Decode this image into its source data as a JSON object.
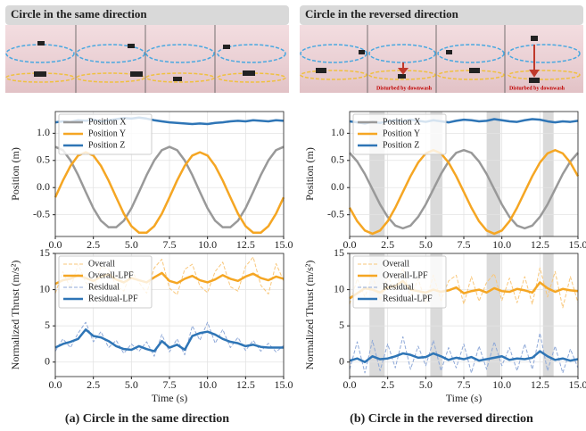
{
  "panels": [
    {
      "banner": "Circle in the same direction",
      "caption": "(a) Circle in the same direction"
    },
    {
      "banner": "Circle in the reversed direction",
      "caption": "(b) Circle in the reversed direction",
      "annotations": [
        "Disturbed by downwash",
        "Disturbed by downwash"
      ]
    }
  ],
  "chart_data": [
    {
      "type": "line",
      "ylabel": "Position (m)",
      "legend": "upper left",
      "grid": true,
      "x": [
        0,
        0.5,
        1,
        1.5,
        2,
        2.5,
        3,
        3.5,
        4,
        4.5,
        5,
        5.5,
        6,
        6.5,
        7,
        7.5,
        8,
        8.5,
        9,
        9.5,
        10,
        10.5,
        11,
        11.5,
        12,
        12.5,
        13,
        13.5,
        14,
        14.5,
        15
      ],
      "xlim": [
        0,
        15
      ],
      "ylim": [
        -0.9,
        1.4
      ],
      "xticks": [
        {
          "value": 0,
          "label": "0.0"
        },
        2.5,
        {
          "value": 5,
          "label": "5.0"
        },
        7.5,
        {
          "value": 10,
          "label": "10.0"
        },
        12.5,
        {
          "value": 15,
          "label": "15.0"
        }
      ],
      "yticks": [
        -0.5,
        {
          "value": 0,
          "label": "0.0"
        },
        0.5,
        {
          "value": 1,
          "label": "1.0"
        }
      ],
      "series": [
        {
          "name": "Position X",
          "color": "#999999",
          "values": [
            0.75,
            0.69,
            0.5,
            0.23,
            -0.08,
            -0.38,
            -0.61,
            -0.73,
            -0.73,
            -0.61,
            -0.38,
            -0.08,
            0.23,
            0.5,
            0.69,
            0.75,
            0.69,
            0.5,
            0.23,
            -0.08,
            -0.38,
            -0.61,
            -0.73,
            -0.73,
            -0.61,
            -0.38,
            -0.08,
            0.23,
            0.5,
            0.69,
            0.75
          ]
        },
        {
          "name": "Position Y",
          "color": "#f5a623",
          "values": [
            -0.18,
            0.13,
            0.4,
            0.59,
            0.65,
            0.59,
            0.4,
            0.13,
            -0.18,
            -0.48,
            -0.71,
            -0.83,
            -0.83,
            -0.71,
            -0.48,
            -0.18,
            0.13,
            0.4,
            0.59,
            0.65,
            0.59,
            0.4,
            0.13,
            -0.18,
            -0.48,
            -0.71,
            -0.83,
            -0.83,
            -0.71,
            -0.48,
            -0.18
          ]
        },
        {
          "name": "Position Z",
          "color": "#2e75b6",
          "values": [
            1.2,
            1.22,
            1.21,
            1.24,
            1.23,
            1.25,
            1.22,
            1.24,
            1.26,
            1.28,
            1.27,
            1.29,
            1.27,
            1.24,
            1.22,
            1.2,
            1.19,
            1.18,
            1.17,
            1.18,
            1.17,
            1.19,
            1.2,
            1.22,
            1.23,
            1.22,
            1.24,
            1.23,
            1.22,
            1.24,
            1.23
          ]
        }
      ]
    },
    {
      "type": "line",
      "xlabel": "Time (s)",
      "ylabel": "Normalized Thrust (m/s²)",
      "legend": "upper left",
      "grid": true,
      "x": [
        0,
        0.5,
        1,
        1.5,
        2,
        2.5,
        3,
        3.5,
        4,
        4.5,
        5,
        5.5,
        6,
        6.5,
        7,
        7.5,
        8,
        8.5,
        9,
        9.5,
        10,
        10.5,
        11,
        11.5,
        12,
        12.5,
        13,
        13.5,
        14,
        14.5,
        15
      ],
      "xlim": [
        0,
        15
      ],
      "ylim": [
        -2,
        15
      ],
      "xticks": [
        {
          "value": 0,
          "label": "0.0"
        },
        2.5,
        {
          "value": 5,
          "label": "5.0"
        },
        7.5,
        {
          "value": 10,
          "label": "10.0"
        },
        12.5,
        {
          "value": 15,
          "label": "15.0"
        }
      ],
      "yticks": [
        0,
        5,
        10,
        15
      ],
      "series": [
        {
          "name": "Overall",
          "color": "#f9c77a",
          "dashed": true,
          "values": [
            9.5,
            12.5,
            10.2,
            13.5,
            11.0,
            10.0,
            13.2,
            12.8,
            10.5,
            9.8,
            12.6,
            11.0,
            9.5,
            13.0,
            14.2,
            10.2,
            9.3,
            12.8,
            13.5,
            10.5,
            9.6,
            12.5,
            13.8,
            10.4,
            9.8,
            13.2,
            14.5,
            10.6,
            9.4,
            13.6,
            11.2
          ]
        },
        {
          "name": "Overall-LPF",
          "color": "#f5a623",
          "values": [
            10.8,
            11.3,
            11.5,
            12.0,
            11.6,
            11.2,
            11.8,
            12.1,
            11.4,
            11.0,
            11.6,
            11.3,
            11.0,
            11.7,
            12.3,
            11.2,
            10.9,
            11.5,
            11.9,
            11.3,
            11.0,
            11.4,
            12.0,
            11.5,
            11.2,
            11.8,
            12.2,
            11.6,
            11.3,
            11.8,
            11.5
          ]
        },
        {
          "name": "Residual",
          "color": "#8fa9d8",
          "dashed": true,
          "values": [
            1.5,
            3.2,
            2.0,
            4.0,
            5.5,
            2.8,
            4.2,
            2.0,
            3.0,
            1.2,
            2.5,
            1.5,
            2.8,
            0.8,
            3.8,
            1.4,
            3.2,
            1.0,
            5.0,
            3.0,
            5.5,
            2.6,
            4.5,
            2.0,
            3.4,
            1.6,
            3.0,
            1.5,
            2.6,
            1.4,
            2.3
          ]
        },
        {
          "name": "Residual-LPF",
          "color": "#2e75b6",
          "values": [
            2.0,
            2.5,
            2.8,
            3.2,
            4.5,
            3.6,
            3.4,
            2.9,
            2.2,
            1.8,
            1.7,
            2.2,
            1.8,
            1.5,
            2.9,
            2.0,
            2.4,
            1.7,
            3.6,
            4.0,
            4.2,
            3.8,
            3.2,
            2.8,
            2.6,
            2.2,
            2.4,
            2.1,
            2.0,
            2.0,
            2.0
          ]
        }
      ]
    },
    {
      "type": "line",
      "ylabel": "Position (m)",
      "legend": "upper left",
      "grid": true,
      "x": [
        0,
        0.5,
        1,
        1.5,
        2,
        2.5,
        3,
        3.5,
        4,
        4.5,
        5,
        5.5,
        6,
        6.5,
        7,
        7.5,
        8,
        8.5,
        9,
        9.5,
        10,
        10.5,
        11,
        11.5,
        12,
        12.5,
        13,
        13.5,
        14,
        14.5,
        15
      ],
      "xlim": [
        0,
        15
      ],
      "ylim": [
        -0.9,
        1.4
      ],
      "shaded_spans": [
        [
          1.3,
          2.3
        ],
        [
          5.3,
          6.1
        ],
        [
          9.0,
          9.9
        ],
        [
          12.7,
          13.4
        ]
      ],
      "xticks": [
        {
          "value": 0,
          "label": "0.0"
        },
        2.5,
        {
          "value": 5,
          "label": "5.0"
        },
        7.5,
        {
          "value": 10,
          "label": "10.0"
        },
        12.5,
        {
          "value": 15,
          "label": "15.0"
        }
      ],
      "yticks": [
        -0.5,
        {
          "value": 0,
          "label": "0.0"
        },
        0.5,
        {
          "value": 1,
          "label": "1.0"
        }
      ],
      "series": [
        {
          "name": "Position X",
          "color": "#999999",
          "values": [
            0.64,
            0.48,
            0.25,
            -0.03,
            -0.31,
            -0.54,
            -0.7,
            -0.75,
            -0.7,
            -0.54,
            -0.31,
            -0.03,
            0.25,
            0.48,
            0.64,
            0.69,
            0.64,
            0.48,
            0.25,
            -0.03,
            -0.31,
            -0.54,
            -0.7,
            -0.75,
            -0.7,
            -0.54,
            -0.31,
            -0.03,
            0.25,
            0.48,
            0.64
          ]
        },
        {
          "name": "Position Y",
          "color": "#f5a623",
          "values": [
            -0.37,
            -0.62,
            -0.79,
            -0.85,
            -0.79,
            -0.62,
            -0.37,
            -0.08,
            0.21,
            0.46,
            0.63,
            0.69,
            0.63,
            0.46,
            0.21,
            -0.08,
            -0.37,
            -0.62,
            -0.79,
            -0.85,
            -0.79,
            -0.62,
            -0.37,
            -0.08,
            0.21,
            0.46,
            0.63,
            0.69,
            0.63,
            0.46,
            0.21
          ]
        },
        {
          "name": "Position Z",
          "color": "#2e75b6",
          "values": [
            1.22,
            1.2,
            1.18,
            1.21,
            1.19,
            1.22,
            1.24,
            1.22,
            1.25,
            1.23,
            1.21,
            1.24,
            1.22,
            1.2,
            1.23,
            1.25,
            1.24,
            1.22,
            1.23,
            1.26,
            1.24,
            1.22,
            1.21,
            1.24,
            1.26,
            1.25,
            1.22,
            1.2,
            1.22,
            1.21,
            1.23
          ]
        }
      ]
    },
    {
      "type": "line",
      "xlabel": "Time (s)",
      "ylabel": "Normalized Thrust (m/s²)",
      "legend": "upper left",
      "grid": true,
      "x": [
        0,
        0.5,
        1,
        1.5,
        2,
        2.5,
        3,
        3.5,
        4,
        4.5,
        5,
        5.5,
        6,
        6.5,
        7,
        7.5,
        8,
        8.5,
        9,
        9.5,
        10,
        10.5,
        11,
        11.5,
        12,
        12.5,
        13,
        13.5,
        14,
        14.5,
        15
      ],
      "xlim": [
        0,
        15
      ],
      "ylim": [
        -2,
        15
      ],
      "shaded_spans": [
        [
          1.3,
          2.3
        ],
        [
          5.3,
          6.1
        ],
        [
          9.0,
          9.9
        ],
        [
          12.7,
          13.4
        ]
      ],
      "xticks": [
        {
          "value": 0,
          "label": "0.0"
        },
        2.5,
        {
          "value": 5,
          "label": "5.0"
        },
        7.5,
        {
          "value": 10,
          "label": "10.0"
        },
        12.5,
        {
          "value": 15,
          "label": "15.0"
        }
      ],
      "yticks": [
        0,
        5,
        10,
        15
      ],
      "series": [
        {
          "name": "Overall",
          "color": "#f9c77a",
          "dashed": true,
          "values": [
            8.0,
            11.5,
            9.0,
            12.0,
            8.5,
            11.8,
            10.0,
            13.0,
            8.8,
            11.5,
            8.2,
            12.0,
            8.5,
            11.2,
            12.0,
            8.0,
            11.8,
            8.4,
            11.0,
            12.2,
            8.5,
            11.6,
            8.2,
            11.8,
            8.0,
            13.0,
            9.0,
            12.5,
            7.5,
            11.8,
            8.2
          ]
        },
        {
          "name": "Overall-LPF",
          "color": "#f5a623",
          "values": [
            8.8,
            9.5,
            10.2,
            10.0,
            9.6,
            10.3,
            10.5,
            11.2,
            10.0,
            9.8,
            9.6,
            10.0,
            9.7,
            9.9,
            10.3,
            9.5,
            9.8,
            10.0,
            9.6,
            10.2,
            9.8,
            9.7,
            10.1,
            9.9,
            9.6,
            11.0,
            10.2,
            9.7,
            10.1,
            9.9,
            9.8
          ]
        },
        {
          "name": "Residual",
          "color": "#8fa9d8",
          "dashed": true,
          "values": [
            -1.0,
            2.8,
            -1.5,
            3.0,
            -1.2,
            2.5,
            -0.8,
            3.5,
            -1.0,
            2.2,
            -0.5,
            3.0,
            -1.2,
            2.0,
            -0.8,
            2.5,
            -1.5,
            2.2,
            -1.0,
            2.8,
            -0.5,
            2.0,
            -1.2,
            2.5,
            -1.0,
            4.0,
            -1.2,
            2.2,
            -1.5,
            1.8,
            -0.8
          ]
        },
        {
          "name": "Residual-LPF",
          "color": "#2e75b6",
          "values": [
            0.2,
            0.5,
            0.0,
            0.8,
            0.4,
            0.5,
            0.8,
            1.2,
            1.0,
            0.6,
            0.7,
            1.2,
            0.8,
            0.3,
            0.6,
            0.4,
            0.7,
            0.2,
            0.4,
            0.6,
            0.8,
            0.3,
            0.5,
            0.4,
            0.6,
            1.5,
            0.8,
            0.3,
            0.5,
            0.2,
            0.4
          ]
        }
      ]
    }
  ]
}
